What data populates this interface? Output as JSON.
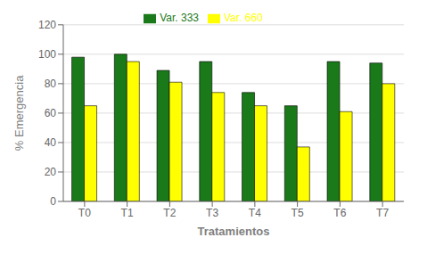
{
  "chart_data": {
    "type": "bar",
    "categories": [
      "T0",
      "T1",
      "T2",
      "T3",
      "T4",
      "T5",
      "T6",
      "T7"
    ],
    "series": [
      {
        "name": "Var. 333",
        "color": "#1a7a1a",
        "values": [
          98,
          100,
          89,
          95,
          74,
          65,
          95,
          94
        ]
      },
      {
        "name": "Var. 660",
        "color": "#FFFF00",
        "values": [
          65,
          95,
          81,
          74,
          65,
          37,
          61,
          80
        ]
      }
    ],
    "xlabel": "Tratamientos",
    "ylabel": "% Emergencia",
    "ylim": [
      0,
      120
    ],
    "yticks": [
      0,
      20,
      40,
      60,
      80,
      100,
      120
    ],
    "grid": true,
    "legend": "top"
  }
}
